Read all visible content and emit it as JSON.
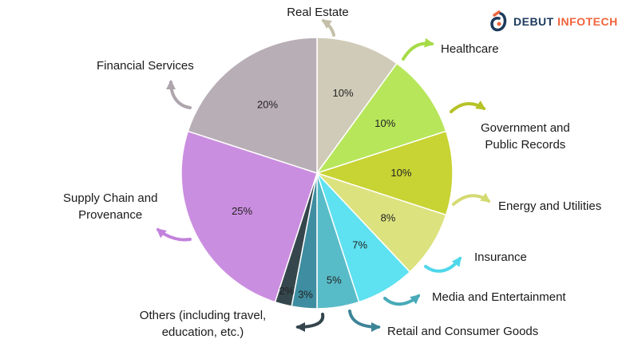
{
  "brand": {
    "name_part1": "DEBUT",
    "name_part2": "INFOTECH",
    "colors": {
      "dark": "#1d3a5c",
      "accent": "#f0643c"
    },
    "icon": "debut-logo-icon"
  },
  "chart_data": {
    "type": "pie",
    "title": "",
    "slices": [
      {
        "label": "Real Estate",
        "value": 10,
        "value_label": "10%",
        "color": "#cfcbb8",
        "label_lines": [
          "Real Estate"
        ],
        "arrow_color": "#c4bfa8"
      },
      {
        "label": "Healthcare",
        "value": 10,
        "value_label": "10%",
        "color": "#b7e65a",
        "label_lines": [
          "Healthcare"
        ],
        "arrow_color": "#a6db47"
      },
      {
        "label": "Government and Public Records",
        "value": 10,
        "value_label": "10%",
        "color": "#c8d334",
        "label_lines": [
          "Government and",
          "Public Records"
        ],
        "arrow_color": "#b6c227"
      },
      {
        "label": "Energy and Utilities",
        "value": 8,
        "value_label": "8%",
        "color": "#dce27e",
        "label_lines": [
          "Energy and Utilities"
        ],
        "arrow_color": "#d4da72"
      },
      {
        "label": "Insurance",
        "value": 7,
        "value_label": "7%",
        "color": "#5ee1f0",
        "label_lines": [
          "Insurance"
        ],
        "arrow_color": "#4fd7ea"
      },
      {
        "label": "Media and Entertainment",
        "value": 5,
        "value_label": "5%",
        "color": "#58bcc8",
        "label_lines": [
          "Media and Entertainment"
        ],
        "arrow_color": "#48aab8"
      },
      {
        "label": "Retail and Consumer Goods",
        "value": 3,
        "value_label": "3%",
        "color": "#3f8da0",
        "label_lines": [
          "Retail and Consumer Goods"
        ],
        "arrow_color": "#3d8498"
      },
      {
        "label": "Others (including travel, education, etc.)",
        "value": 2,
        "value_label": "2%",
        "color": "#35474d",
        "label_lines": [
          "Others (including travel,",
          "education, etc.)"
        ],
        "arrow_color": "#34454c"
      },
      {
        "label": "Supply Chain and Provenance",
        "value": 25,
        "value_label": "25%",
        "color": "#ca8ee0",
        "label_lines": [
          "Supply Chain and",
          "Provenance"
        ],
        "arrow_color": "#c282dc"
      },
      {
        "label": "Financial Services",
        "value": 20,
        "value_label": "20%",
        "color": "#b8aeb6",
        "label_lines": [
          "Financial Services"
        ],
        "arrow_color": "#aea5ad"
      }
    ],
    "legend": "none",
    "start": "top, clockwise"
  }
}
